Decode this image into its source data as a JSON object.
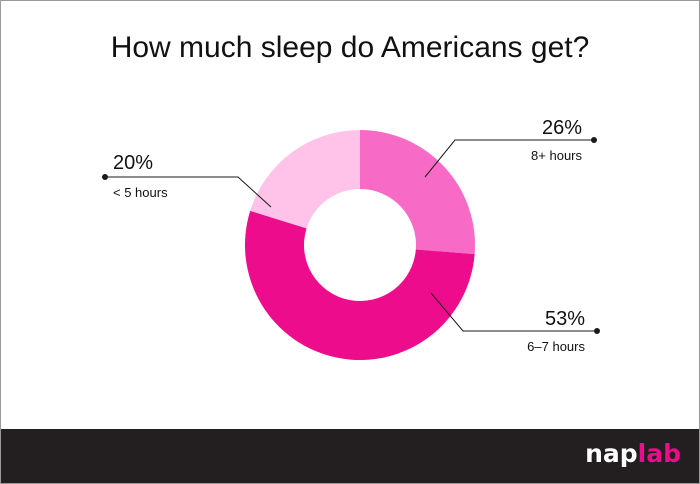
{
  "chart_data": {
    "type": "pie",
    "variant": "donut",
    "title": "How much sleep do Americans get?",
    "categories": [
      "8+ hours",
      "6–7 hours",
      "< 5 hours"
    ],
    "values": [
      26,
      53,
      20
    ],
    "labels": [
      "26%",
      "53%",
      "20%"
    ],
    "colors": [
      "#f76bc7",
      "#ec0c8c",
      "#ffc2e8"
    ],
    "start_angle_deg": 0,
    "legend": "none"
  },
  "brand": {
    "part1": "nap",
    "part2": "lab"
  }
}
